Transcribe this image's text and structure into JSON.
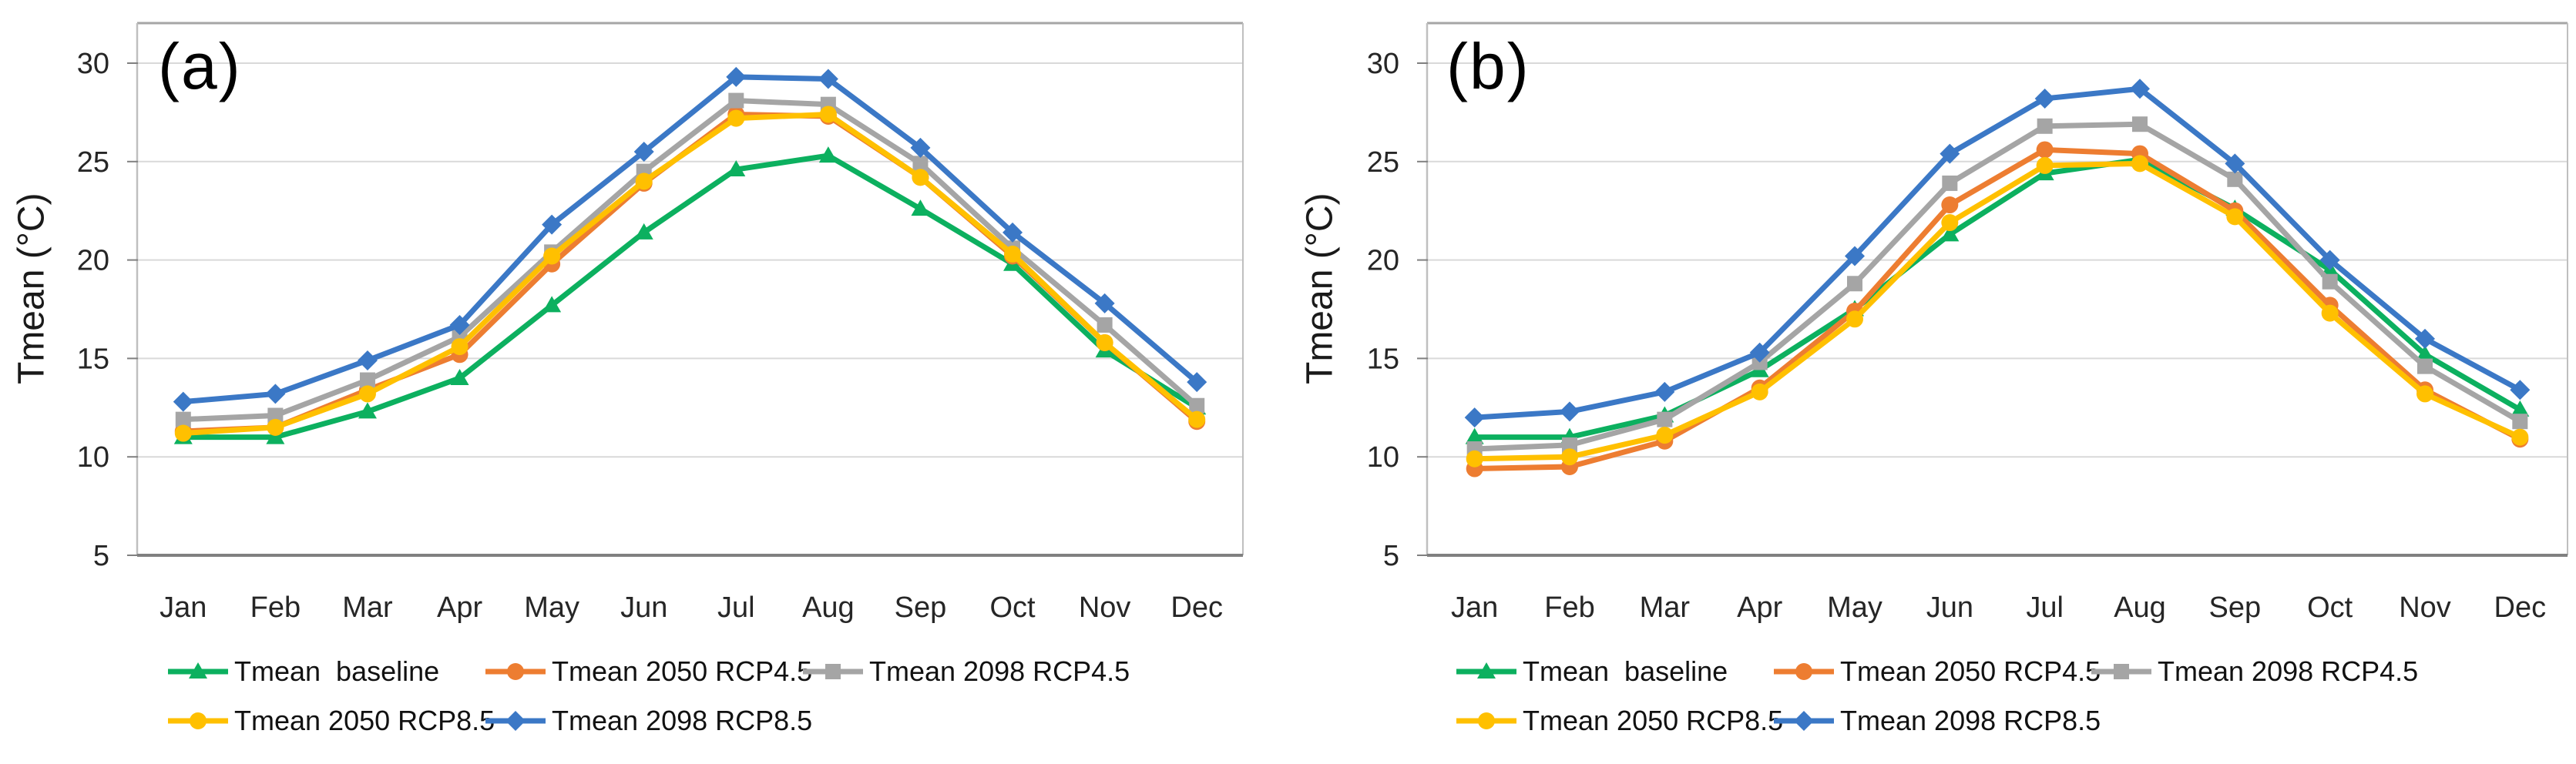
{
  "figure": {
    "background": "#ffffff",
    "text_color": "#262626",
    "legend_text_color": "#111111",
    "grid_color": "#d9d9d9",
    "border_color": "#bfbfbf",
    "axis_color": "#808080",
    "months": [
      "Jan",
      "Feb",
      "Mar",
      "Apr",
      "May",
      "Jun",
      "Jul",
      "Aug",
      "Sep",
      "Oct",
      "Nov",
      "Dec"
    ],
    "y_ticks": [
      5,
      10,
      15,
      20,
      25,
      30
    ]
  },
  "chart_data": [
    {
      "type": "line",
      "title": "(a)",
      "ylabel": "Tmean (°C)",
      "ylim": [
        5,
        32
      ],
      "grid": true,
      "legend_position": "bottom",
      "categories": [
        "Jan",
        "Feb",
        "Mar",
        "Apr",
        "May",
        "Jun",
        "Jul",
        "Aug",
        "Sep",
        "Oct",
        "Nov",
        "Dec"
      ],
      "series": [
        {
          "name": "Tmean  baseline",
          "color": "#0cb05f",
          "marker": "triangle",
          "values": [
            11.0,
            11.0,
            12.3,
            14.0,
            17.7,
            21.4,
            24.6,
            25.3,
            22.6,
            19.8,
            15.4,
            12.5
          ]
        },
        {
          "name": "Tmean 2050 RCP4.5",
          "color": "#ed7d31",
          "marker": "circle",
          "values": [
            11.3,
            11.5,
            13.4,
            15.2,
            19.8,
            23.9,
            27.4,
            27.3,
            24.2,
            20.2,
            15.8,
            11.8
          ]
        },
        {
          "name": "Tmean 2098 RCP4.5",
          "color": "#a5a5a5",
          "marker": "square",
          "values": [
            11.9,
            12.1,
            13.9,
            16.1,
            20.4,
            24.5,
            28.1,
            27.9,
            24.9,
            20.6,
            16.7,
            12.6
          ]
        },
        {
          "name": "Tmean 2050 RCP8.5",
          "color": "#ffc000",
          "marker": "circle",
          "values": [
            11.2,
            11.5,
            13.2,
            15.6,
            20.2,
            24.0,
            27.2,
            27.4,
            24.2,
            20.3,
            15.8,
            11.9
          ]
        },
        {
          "name": "Tmean 2098 RCP8.5",
          "color": "#3b78c6",
          "marker": "diamond",
          "values": [
            12.8,
            13.2,
            14.9,
            16.7,
            21.8,
            25.5,
            29.3,
            29.2,
            25.7,
            21.4,
            17.8,
            13.8
          ]
        }
      ]
    },
    {
      "type": "line",
      "title": "(b)",
      "ylabel": "Tmean (°C)",
      "ylim": [
        5,
        32
      ],
      "grid": true,
      "legend_position": "bottom",
      "categories": [
        "Jan",
        "Feb",
        "Mar",
        "Apr",
        "May",
        "Jun",
        "Jul",
        "Aug",
        "Sep",
        "Oct",
        "Nov",
        "Dec"
      ],
      "series": [
        {
          "name": "Tmean  baseline",
          "color": "#0cb05f",
          "marker": "triangle",
          "values": [
            11.0,
            11.0,
            12.1,
            14.4,
            17.5,
            21.3,
            24.4,
            25.1,
            22.6,
            19.5,
            15.2,
            12.4
          ]
        },
        {
          "name": "Tmean 2050 RCP4.5",
          "color": "#ed7d31",
          "marker": "circle",
          "values": [
            9.4,
            9.5,
            10.8,
            13.5,
            17.4,
            22.8,
            25.6,
            25.4,
            22.5,
            17.7,
            13.4,
            10.9
          ]
        },
        {
          "name": "Tmean 2098 RCP4.5",
          "color": "#a5a5a5",
          "marker": "square",
          "values": [
            10.4,
            10.6,
            11.9,
            14.8,
            18.8,
            23.9,
            26.8,
            26.9,
            24.1,
            18.9,
            14.6,
            11.8
          ]
        },
        {
          "name": "Tmean 2050 RCP8.5",
          "color": "#ffc000",
          "marker": "circle",
          "values": [
            9.9,
            10.0,
            11.1,
            13.3,
            17.0,
            21.9,
            24.8,
            24.9,
            22.2,
            17.3,
            13.2,
            11.0
          ]
        },
        {
          "name": "Tmean 2098 RCP8.5",
          "color": "#3b78c6",
          "marker": "diamond",
          "values": [
            12.0,
            12.3,
            13.3,
            15.3,
            20.2,
            25.4,
            28.2,
            28.7,
            24.9,
            20.0,
            16.0,
            13.4
          ]
        }
      ]
    }
  ]
}
